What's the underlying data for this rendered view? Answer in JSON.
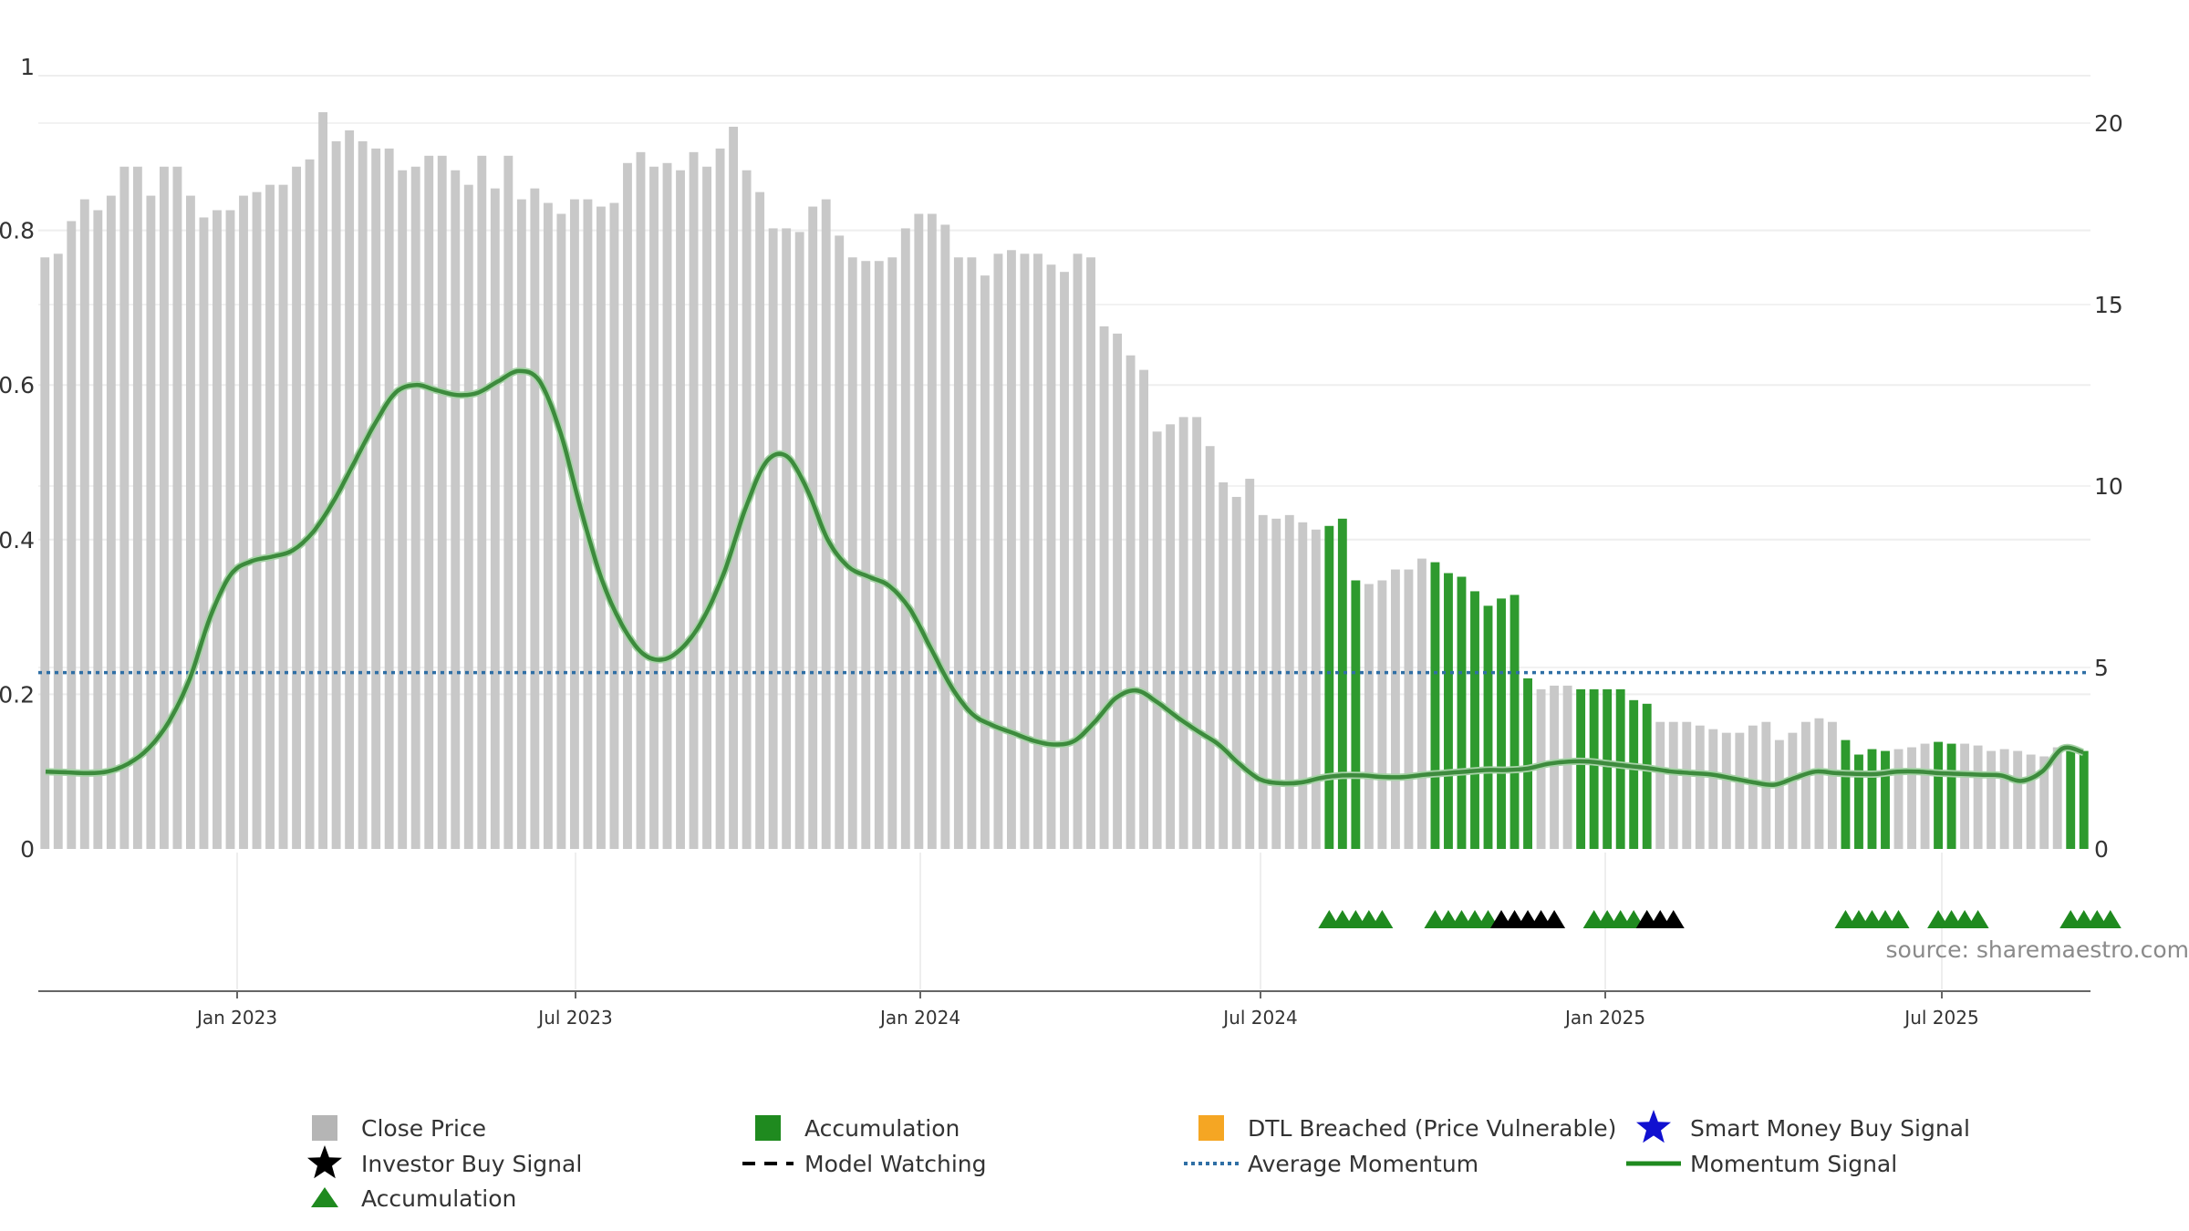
{
  "chart_data": {
    "type": "bar",
    "title": "",
    "source": "source: sharemaestro.com",
    "left_axis": {
      "ticks": [
        "0",
        "0.2",
        "0.4",
        "0.6",
        "0.8",
        "1"
      ],
      "ylim": [
        0,
        1
      ]
    },
    "right_axis": {
      "ticks": [
        "0",
        "5",
        "10",
        "15",
        "20"
      ],
      "ylim": [
        0,
        21.33
      ]
    },
    "x_axis": {
      "ticks": [
        "Jan 2023",
        "Jul 2023",
        "Jan 2024",
        "Jul 2024",
        "Jan 2025",
        "Jul 2025"
      ]
    },
    "colors": {
      "close": "#c8c8c8",
      "accumulation": "#2e9a2e",
      "momentum": "#3d8b3d",
      "average_momentum": "#2f6fa5",
      "investor_buy": "#000000",
      "dtl": "#f5a623",
      "smart_money": "#1010d0"
    },
    "close_price": [
      16.3,
      16.4,
      17.3,
      17.9,
      17.6,
      18.0,
      18.8,
      18.8,
      18.0,
      18.8,
      18.8,
      18.0,
      17.4,
      17.6,
      17.6,
      18.0,
      18.1,
      18.3,
      18.3,
      18.8,
      19.0,
      20.3,
      19.5,
      19.8,
      19.5,
      19.3,
      19.3,
      18.7,
      18.8,
      19.1,
      19.1,
      18.7,
      18.3,
      19.1,
      18.2,
      19.1,
      17.9,
      18.2,
      17.8,
      17.5,
      17.9,
      17.9,
      17.7,
      17.8,
      18.9,
      19.2,
      18.8,
      18.9,
      18.7,
      19.2,
      18.8,
      19.3,
      19.9,
      18.7,
      18.1,
      17.1,
      17.1,
      17.0,
      17.7,
      17.9,
      16.9,
      16.3,
      16.2,
      16.2,
      16.3,
      17.1,
      17.5,
      17.5,
      17.2,
      16.3,
      16.3,
      15.8,
      16.4,
      16.5,
      16.4,
      16.4,
      16.1,
      15.9,
      16.4,
      16.3,
      14.4,
      14.2,
      13.6,
      13.2,
      11.5,
      11.7,
      11.9,
      11.9,
      11.1,
      10.1,
      9.7,
      10.2,
      9.2,
      9.1,
      9.2,
      9.0,
      8.8,
      8.9,
      9.1,
      7.4,
      7.3,
      7.4,
      7.7,
      7.7,
      8.0,
      7.9,
      7.6,
      7.5,
      7.1,
      6.7,
      6.9,
      7.0,
      4.7,
      4.4,
      4.5,
      4.5,
      4.4,
      4.4,
      4.4,
      4.4,
      4.1,
      4.0,
      3.5,
      3.5,
      3.5,
      3.4,
      3.3,
      3.2,
      3.2,
      3.4,
      3.5,
      3.0,
      3.2,
      3.5,
      3.6,
      3.5,
      3.0,
      2.6,
      2.75,
      2.7,
      2.75,
      2.8,
      2.9,
      2.95,
      2.9,
      2.9,
      2.85,
      2.7,
      2.75,
      2.7,
      2.6,
      2.55,
      2.8,
      2.8,
      2.7
    ],
    "accumulation_ranges": [
      [
        97,
        99
      ],
      [
        105,
        112
      ],
      [
        116,
        121
      ],
      [
        136,
        139
      ],
      [
        143,
        144
      ],
      [
        153,
        156
      ]
    ],
    "momentum": [
      0.1,
      0.099,
      0.098,
      0.1,
      0.11,
      0.13,
      0.165,
      0.22,
      0.3,
      0.355,
      0.372,
      0.378,
      0.386,
      0.41,
      0.45,
      0.5,
      0.55,
      0.59,
      0.6,
      0.593,
      0.587,
      0.59,
      0.605,
      0.618,
      0.605,
      0.54,
      0.44,
      0.35,
      0.29,
      0.253,
      0.245,
      0.262,
      0.3,
      0.36,
      0.44,
      0.5,
      0.508,
      0.465,
      0.4,
      0.365,
      0.352,
      0.34,
      0.31,
      0.26,
      0.21,
      0.175,
      0.16,
      0.15,
      0.14,
      0.135,
      0.14,
      0.165,
      0.195,
      0.205,
      0.19,
      0.17,
      0.152,
      0.135,
      0.11,
      0.09,
      0.085,
      0.086,
      0.092,
      0.095,
      0.095,
      0.093,
      0.093,
      0.096,
      0.098,
      0.1,
      0.102,
      0.102,
      0.104,
      0.11,
      0.113,
      0.113,
      0.11,
      0.107,
      0.104,
      0.1,
      0.098,
      0.096,
      0.091,
      0.086,
      0.083,
      0.092,
      0.1,
      0.098,
      0.097,
      0.097,
      0.1,
      0.1,
      0.098,
      0.097,
      0.096,
      0.095,
      0.088,
      0.1,
      0.13,
      0.125
    ],
    "average_momentum": 0.228,
    "signals": {
      "accumulation_markers": [
        [
          97,
          101
        ],
        [
          105,
          109
        ],
        [
          117,
          121
        ],
        [
          136,
          140
        ],
        [
          143,
          146
        ],
        [
          153,
          156
        ]
      ],
      "investor_buy_markers": [
        [
          110,
          114
        ],
        [
          121,
          123
        ]
      ]
    },
    "legend": [
      {
        "label": "Close Price",
        "symbol": "square",
        "color": "#b5b5b5"
      },
      {
        "label": "Accumulation",
        "symbol": "square",
        "color": "#1f8a1f"
      },
      {
        "label": "DTL Breached (Price Vulnerable)",
        "symbol": "square",
        "color": "#f5a623"
      },
      {
        "label": "Smart Money Buy Signal",
        "symbol": "star",
        "color": "#1010d0"
      },
      {
        "label": "Investor Buy Signal",
        "symbol": "star",
        "color": "#000000"
      },
      {
        "label": "Model Watching",
        "symbol": "dash",
        "color": "#000000"
      },
      {
        "label": "Average Momentum",
        "symbol": "dots",
        "color": "#2f6fa5"
      },
      {
        "label": "Momentum Signal",
        "symbol": "line",
        "color": "#1f8a1f"
      },
      {
        "label": "Accumulation",
        "symbol": "triangle",
        "color": "#1f8a1f"
      }
    ]
  }
}
